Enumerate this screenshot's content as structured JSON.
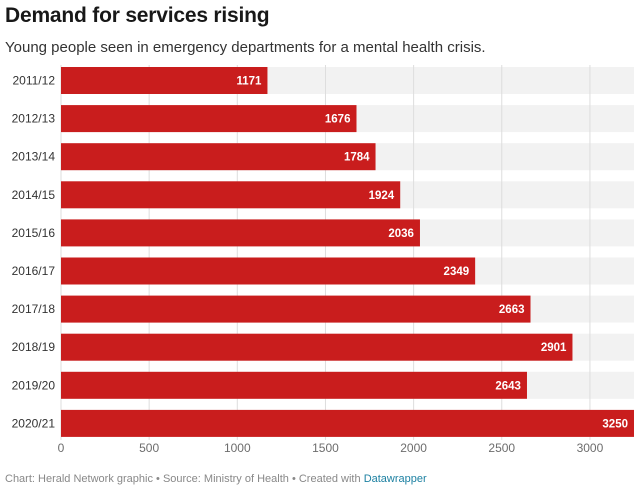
{
  "title": "Demand for services rising",
  "subtitle": "Young people seen in emergency departments for a mental health crisis.",
  "footer": {
    "chart_credit": "Chart: Herald Network graphic",
    "separator_1": "•",
    "source": "Source: Ministry of Health",
    "separator_2": "•",
    "created_with": "Created with",
    "tool_link": "Datawrapper"
  },
  "colors": {
    "bar": "#c91d1d",
    "background_band": "#f2f2f2",
    "gridline": "#dddddd",
    "link": "#1d81a2"
  },
  "chart_data": {
    "type": "bar",
    "orientation": "horizontal",
    "categories": [
      "2011/12",
      "2012/13",
      "2013/14",
      "2014/15",
      "2015/16",
      "2016/17",
      "2017/18",
      "2018/19",
      "2019/20",
      "2020/21"
    ],
    "values": [
      1171,
      1676,
      1784,
      1924,
      2036,
      2349,
      2663,
      2901,
      2643,
      3250
    ],
    "value_labels": [
      "1171",
      "1676",
      "1784",
      "1924",
      "2036",
      "2349",
      "2663",
      "2901",
      "2643",
      "3250"
    ],
    "xlim": [
      0,
      3250
    ],
    "x_ticks": [
      0,
      500,
      1000,
      1500,
      2000,
      2500,
      3000
    ],
    "x_tick_labels": [
      "0",
      "500",
      "1000",
      "1500",
      "2000",
      "2500",
      "3000"
    ],
    "grid": true
  }
}
